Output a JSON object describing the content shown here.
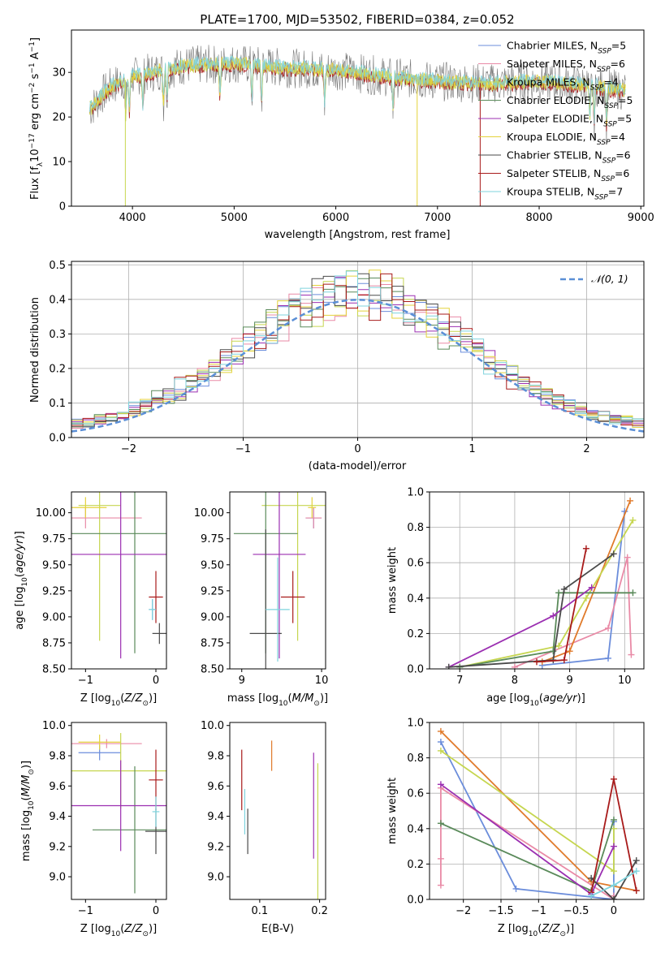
{
  "figure_title": "PLATE=1700, MJD=53502, FIBERID=0384, z=0.052",
  "model_colors": [
    "#6b8ddb",
    "#e98aa6",
    "#c6d650",
    "#5a8a5a",
    "#9b2fb1",
    "#e4d23b",
    "#4a4a4a",
    "#a81a1a",
    "#7fd3dd"
  ],
  "extra_colors": {
    "orange": "#e07a2a"
  },
  "chart_data": [
    {
      "id": "spectrum",
      "type": "line",
      "xlabel": "wavelength [Angstrom, rest frame]",
      "ylabel_parts": [
        "Flux [f",
        "λ",
        "10",
        "−17",
        " erg cm",
        "−2",
        " s",
        "−1",
        " A",
        "−1",
        "]"
      ],
      "xlim": [
        3400,
        9030
      ],
      "ylim": [
        0,
        39.5
      ],
      "xticks": [
        4000,
        5000,
        6000,
        7000,
        8000,
        9000
      ],
      "yticks": [
        0,
        10,
        20,
        30
      ],
      "grid": false,
      "legend_position": "top-right",
      "legend": [
        {
          "label": "Chabrier MILES, N",
          "sub": "SSP",
          "suffix": "=5"
        },
        {
          "label": "Salpeter MILES, N",
          "sub": "SSP",
          "suffix": "=6"
        },
        {
          "label": "Kroupa MILES, N",
          "sub": "SSP",
          "suffix": "=4"
        },
        {
          "label": "Chabrier ELODIE, N",
          "sub": "SSP",
          "suffix": "=5"
        },
        {
          "label": "Salpeter ELODIE, N",
          "sub": "SSP",
          "suffix": "=5"
        },
        {
          "label": "Kroupa ELODIE, N",
          "sub": "SSP",
          "suffix": "=4"
        },
        {
          "label": "Chabrier STELIB, N",
          "sub": "SSP",
          "suffix": "=6"
        },
        {
          "label": "Salpeter STELIB, N",
          "sub": "SSP",
          "suffix": "=6"
        },
        {
          "label": "Kroupa STELIB, N",
          "sub": "SSP",
          "suffix": "=7"
        }
      ],
      "continuum": [
        [
          3600,
          22
        ],
        [
          3700,
          25
        ],
        [
          3800,
          27
        ],
        [
          3900,
          28
        ],
        [
          4000,
          29
        ],
        [
          4200,
          30
        ],
        [
          4500,
          31.5
        ],
        [
          5000,
          32
        ],
        [
          5500,
          31
        ],
        [
          6000,
          30.5
        ],
        [
          6500,
          29
        ],
        [
          7000,
          28
        ],
        [
          7500,
          27.5
        ],
        [
          8000,
          28
        ],
        [
          8500,
          27
        ],
        [
          8800,
          26
        ]
      ],
      "absorption_lines": [
        3934,
        3969,
        4101,
        4305,
        4340,
        4861,
        5175,
        5270,
        5890,
        6563,
        8498,
        8542,
        8662
      ],
      "data_drops": [
        [
          3930,
          0
        ],
        [
          6800,
          0
        ],
        [
          7420,
          0
        ]
      ]
    },
    {
      "id": "residuals",
      "type": "histogram",
      "xlabel": "(data-model)/error",
      "ylabel": "Normed distribution",
      "xlim": [
        -2.5,
        2.5
      ],
      "ylim": [
        0,
        0.51
      ],
      "xticks": [
        -2,
        -1,
        0,
        1,
        2
      ],
      "yticks": [
        0.0,
        0.1,
        0.2,
        0.3,
        0.4,
        0.5
      ],
      "grid": true,
      "bin_width": 0.1,
      "reference_curve": {
        "name": "𝒩(0, 1)",
        "mean": 0,
        "sigma": 1,
        "style": "dashed",
        "color": "#5b8fd6"
      },
      "legend_position": "top-right"
    },
    {
      "id": "age_vs_Z",
      "type": "errorbar",
      "xlabel": "Z [log10(Z/Z⊙)]",
      "ylabel": "age [log10(age/yr)]",
      "xlim": [
        -1.2,
        0.15
      ],
      "ylim": [
        8.5,
        10.2
      ],
      "xticks": [
        -1,
        0
      ],
      "yticks": [
        8.5,
        8.75,
        9.0,
        9.25,
        9.5,
        9.75,
        10.0
      ],
      "grid": false,
      "points": [
        {
          "color": 0,
          "x": -0.05,
          "y": 9.07,
          "xerr": 0.05,
          "yerr": 0.1
        },
        {
          "color": 1,
          "x": -1.0,
          "y": 9.95,
          "xerr": 0.8,
          "yerr": 0.1
        },
        {
          "color": 2,
          "x": -0.8,
          "y": 10.07,
          "xerr": 0.3,
          "yerr": 1.3
        },
        {
          "color": 3,
          "x": -0.3,
          "y": 9.8,
          "xerr": 1.0,
          "yerr": 1.15
        },
        {
          "color": 4,
          "x": -0.5,
          "y": 9.6,
          "xerr": 1.1,
          "yerr": 1.0
        },
        {
          "color": 5,
          "x": -1.0,
          "y": 10.05,
          "xerr": 0.3,
          "yerr": 0.1
        },
        {
          "color": 6,
          "x": 0.05,
          "y": 8.84,
          "xerr": 0.1,
          "yerr": 0.1
        },
        {
          "color": 7,
          "x": 0.0,
          "y": 9.19,
          "xerr": 0.1,
          "yerr": 0.25
        },
        {
          "color": 8,
          "x": -0.05,
          "y": 9.07,
          "xerr": 0.05,
          "yerr": 0.1
        }
      ]
    },
    {
      "id": "age_vs_mass",
      "type": "errorbar",
      "xlabel": "mass [log10(M/M⊙)]",
      "xlim": [
        8.85,
        10.05
      ],
      "ylim": [
        8.5,
        10.2
      ],
      "xticks": [
        9,
        10
      ],
      "yticks": [
        8.5,
        8.75,
        9.0,
        9.25,
        9.5,
        9.75,
        10.0
      ],
      "grid": false,
      "points": [
        {
          "color": 0,
          "x": 9.9,
          "y": 9.95,
          "xerr": 0.1,
          "yerr": 0.1
        },
        {
          "color": 1,
          "x": 9.9,
          "y": 9.95,
          "xerr": 0.1,
          "yerr": 0.1
        },
        {
          "color": 2,
          "x": 9.7,
          "y": 10.07,
          "xerr": 0.45,
          "yerr": 1.3
        },
        {
          "color": 3,
          "x": 9.3,
          "y": 9.8,
          "xerr": 0.4,
          "yerr": 1.15
        },
        {
          "color": 4,
          "x": 9.47,
          "y": 9.6,
          "xerr": 0.33,
          "yerr": 1.0
        },
        {
          "color": 5,
          "x": 9.88,
          "y": 10.05,
          "xerr": 0.05,
          "yerr": 0.1
        },
        {
          "color": 6,
          "x": 9.3,
          "y": 8.84,
          "xerr": 0.2,
          "yerr": 1.0
        },
        {
          "color": 7,
          "x": 9.64,
          "y": 9.19,
          "xerr": 0.15,
          "yerr": 0.25
        },
        {
          "color": 8,
          "x": 9.45,
          "y": 9.07,
          "xerr": 0.15,
          "yerr": 0.5
        }
      ]
    },
    {
      "id": "massweight_vs_age",
      "type": "line",
      "xlabel": "age [log10(age/yr)]",
      "ylabel": "mass weight",
      "xlim": [
        6.45,
        10.35
      ],
      "ylim": [
        0,
        1.0
      ],
      "xticks": [
        7,
        8,
        9,
        10
      ],
      "yticks": [
        0.0,
        0.2,
        0.4,
        0.6,
        0.8,
        1.0
      ],
      "grid": true,
      "series": [
        {
          "color": 0,
          "x": [
            8.5,
            9.7,
            10.0
          ],
          "y": [
            0.02,
            0.06,
            0.89
          ]
        },
        {
          "color": 1,
          "x": [
            8.0,
            9.7,
            10.05,
            10.12
          ],
          "y": [
            0.01,
            0.23,
            0.63,
            0.08
          ]
        },
        {
          "color": "orange",
          "x": [
            8.5,
            9.0,
            10.1
          ],
          "y": [
            0.04,
            0.1,
            0.95
          ]
        },
        {
          "color": 2,
          "x": [
            7.0,
            8.8,
            9.3,
            10.15
          ],
          "y": [
            0.01,
            0.13,
            0.4,
            0.84
          ]
        },
        {
          "color": 3,
          "x": [
            7.0,
            8.7,
            8.8,
            10.15
          ],
          "y": [
            0.01,
            0.1,
            0.43,
            0.43
          ]
        },
        {
          "color": 4,
          "x": [
            6.8,
            8.7,
            9.4
          ],
          "y": [
            0.01,
            0.3,
            0.46
          ]
        },
        {
          "color": 6,
          "x": [
            6.8,
            8.7,
            8.9,
            9.8
          ],
          "y": [
            0.01,
            0.05,
            0.45,
            0.65
          ]
        },
        {
          "color": 7,
          "x": [
            8.4,
            8.9,
            9.3
          ],
          "y": [
            0.04,
            0.05,
            0.68
          ]
        }
      ]
    },
    {
      "id": "mass_vs_Z",
      "type": "errorbar",
      "xlabel": "Z [log10(Z/Z⊙)]",
      "ylabel": "mass [log10(M/M⊙)]",
      "xlim": [
        -1.2,
        0.15
      ],
      "ylim": [
        8.85,
        10.02
      ],
      "xticks": [
        -1,
        0
      ],
      "yticks": [
        9.0,
        9.2,
        9.4,
        9.6,
        9.8,
        10.0
      ],
      "grid": false,
      "points": [
        {
          "color": 0,
          "x": -0.8,
          "y": 9.82,
          "xerr": 0.3,
          "yerr": 0.05
        },
        {
          "color": 1,
          "x": -0.7,
          "y": 9.88,
          "xerr": 0.5,
          "yerr": 0.03
        },
        {
          "color": 2,
          "x": -0.5,
          "y": 9.7,
          "xerr": 0.7,
          "yerr": 0.25
        },
        {
          "color": 3,
          "x": -0.3,
          "y": 9.31,
          "xerr": 0.6,
          "yerr": 0.42
        },
        {
          "color": 4,
          "x": -0.5,
          "y": 9.47,
          "xerr": 1.0,
          "yerr": 0.3
        },
        {
          "color": 5,
          "x": -0.8,
          "y": 9.89,
          "xerr": 0.3,
          "yerr": 0.05
        },
        {
          "color": 6,
          "x": 0.0,
          "y": 9.3,
          "xerr": 0.15,
          "yerr": 0.15
        },
        {
          "color": 7,
          "x": 0.0,
          "y": 9.64,
          "xerr": 0.1,
          "yerr": 0.2
        },
        {
          "color": 8,
          "x": 0.0,
          "y": 9.43,
          "xerr": 0.05,
          "yerr": 0.1
        }
      ]
    },
    {
      "id": "mass_vs_ebv",
      "type": "errorbar",
      "xlabel": "E(B-V)",
      "xlim": [
        0.05,
        0.21
      ],
      "ylim": [
        8.85,
        10.02
      ],
      "xticks": [
        0.1,
        0.2
      ],
      "yticks": [
        9.0,
        9.2,
        9.4,
        9.6,
        9.8,
        10.0
      ],
      "grid": false,
      "points": [
        {
          "color": 7,
          "x": 0.07,
          "y": 9.64,
          "xerr": 0,
          "yerr": 0.2
        },
        {
          "color": 8,
          "x": 0.075,
          "y": 9.43,
          "xerr": 0,
          "yerr": 0.15
        },
        {
          "color": 6,
          "x": 0.08,
          "y": 9.3,
          "xerr": 0,
          "yerr": 0.15
        },
        {
          "color": "orange",
          "x": 0.12,
          "y": 9.8,
          "xerr": 0,
          "yerr": 0.1
        },
        {
          "color": 4,
          "x": 0.19,
          "y": 9.47,
          "xerr": 0,
          "yerr": 0.35
        },
        {
          "color": 2,
          "x": 0.197,
          "y": 9.3,
          "xerr": 0,
          "yerr": 0.45
        }
      ]
    },
    {
      "id": "massweight_vs_Z",
      "type": "line",
      "xlabel": "Z [log10(Z/Z⊙)]",
      "ylabel": "mass weight",
      "xlim": [
        -2.45,
        0.4
      ],
      "ylim": [
        0,
        1.0
      ],
      "xticks": [
        -2.0,
        -1.5,
        -1.0,
        -0.5,
        0.0
      ],
      "yticks": [
        0.0,
        0.2,
        0.4,
        0.6,
        0.8,
        1.0
      ],
      "grid": true,
      "series": [
        {
          "color": 0,
          "x": [
            -2.3,
            -1.3,
            0.0,
            0.0
          ],
          "y": [
            0.89,
            0.06,
            0.0,
            0.44
          ]
        },
        {
          "color": 1,
          "x": [
            -2.3,
            -2.3,
            -2.3,
            0.0,
            0.0
          ],
          "y": [
            0.08,
            0.23,
            0.63,
            0.0,
            0.02
          ]
        },
        {
          "color": "orange",
          "x": [
            -2.3,
            -0.3,
            0.3
          ],
          "y": [
            0.95,
            0.1,
            0.05
          ]
        },
        {
          "color": 2,
          "x": [
            -2.3,
            0.0,
            0.0
          ],
          "y": [
            0.84,
            0.16,
            0.4
          ]
        },
        {
          "color": 3,
          "x": [
            -2.3,
            -0.3,
            0.0
          ],
          "y": [
            0.43,
            0.05,
            0.45
          ]
        },
        {
          "color": 4,
          "x": [
            -2.3,
            -0.3,
            0.0
          ],
          "y": [
            0.65,
            0.03,
            0.3
          ]
        },
        {
          "color": 6,
          "x": [
            -0.3,
            0.0,
            0.3
          ],
          "y": [
            0.12,
            0.0,
            0.22
          ]
        },
        {
          "color": 7,
          "x": [
            -0.3,
            0.0,
            0.3
          ],
          "y": [
            0.04,
            0.68,
            0.05
          ]
        },
        {
          "color": 8,
          "x": [
            -0.3,
            0.0,
            0.3
          ],
          "y": [
            0.02,
            0.08,
            0.16
          ]
        }
      ]
    }
  ]
}
